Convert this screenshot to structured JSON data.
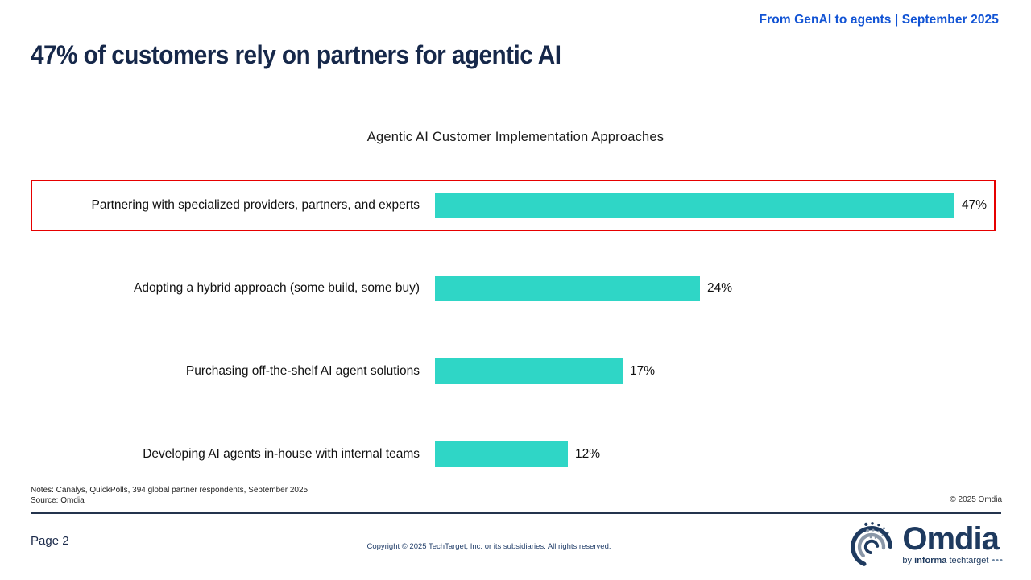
{
  "header": {
    "tagline": "From GenAI to agents | September 2025"
  },
  "slide": {
    "title": "47% of customers rely on partners for agentic AI"
  },
  "chart_data": {
    "type": "bar",
    "orientation": "horizontal",
    "title": "Agentic AI Customer Implementation Approaches",
    "categories": [
      "Partnering with specialized providers, partners, and experts",
      "Adopting a hybrid approach (some build, some buy)",
      "Purchasing off-the-shelf AI agent solutions",
      "Developing AI agents in-house with internal teams"
    ],
    "values": [
      47,
      24,
      17,
      12
    ],
    "value_labels": [
      "47%",
      "24%",
      "17%",
      "12%"
    ],
    "unit": "%",
    "xlim": [
      0,
      50
    ],
    "grid": false,
    "legend": "none",
    "bar_color": "#2fd6c6",
    "highlight_index": 0,
    "highlight_color": "#e60000"
  },
  "notes": {
    "notes_line": "Notes: Canalys, QuickPolls, 394 global partner respondents, September 2025",
    "source_line": "Source: Omdia",
    "copyright_right": "© 2025 Omdia"
  },
  "footer": {
    "page_label": "Page 2",
    "copyright": "Copyright © 2025 TechTarget, Inc. or its subsidiaries. All rights reserved.",
    "logo": {
      "name": "Omdia",
      "sub_by": "by ",
      "sub_informa": "informa",
      "sub_rest": " techtarget",
      "sub_dots": " •••"
    }
  },
  "colors": {
    "accent_blue": "#1153d4",
    "navy": "#1b2a4a",
    "teal": "#2fd6c6",
    "highlight_red": "#e60000"
  }
}
